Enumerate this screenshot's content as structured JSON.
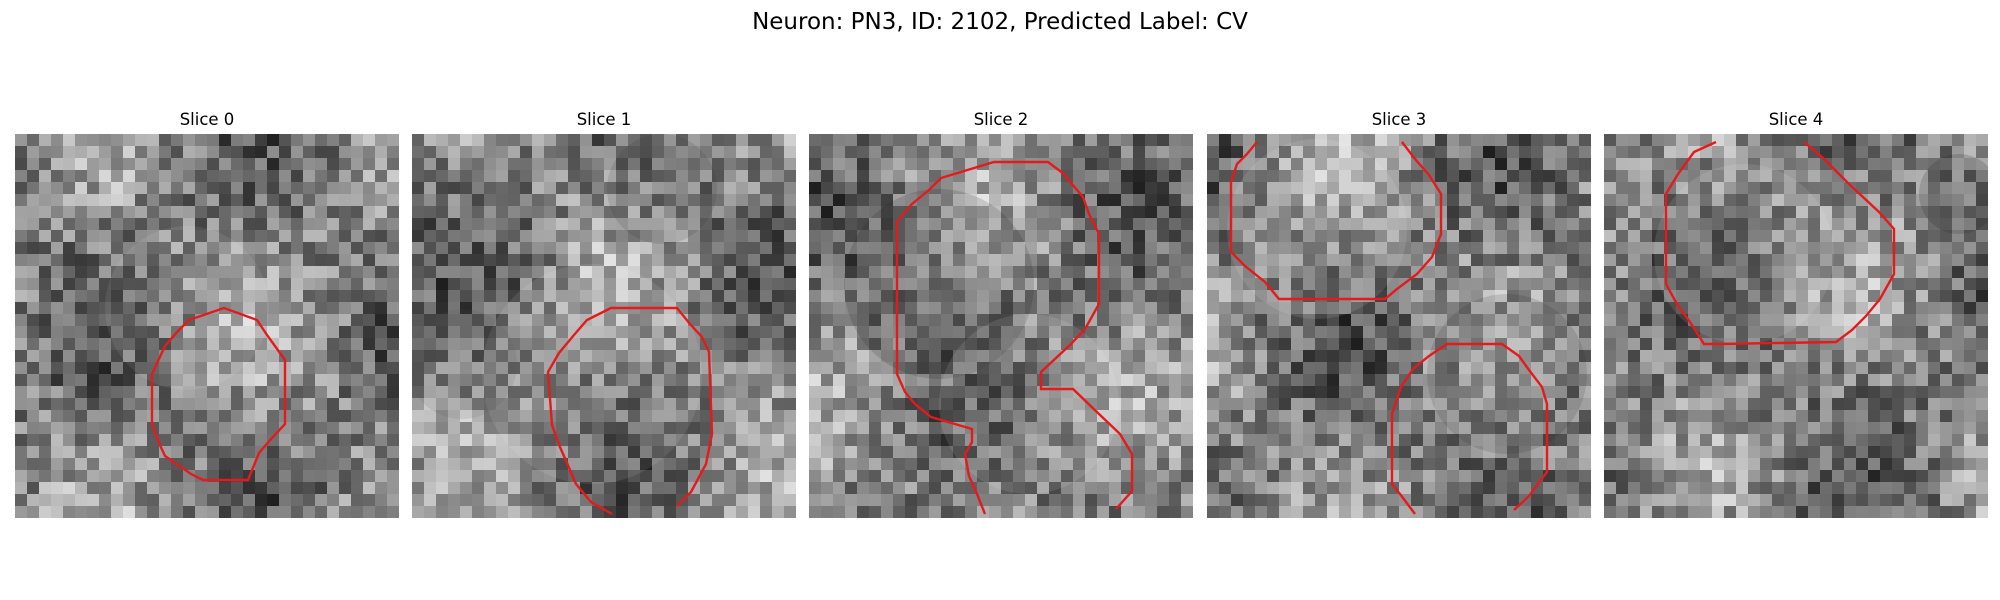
{
  "figure": {
    "title": "Neuron: PN3, ID: 2102, Predicted Label: CV"
  },
  "panels": [
    {
      "title": "Slice 0"
    },
    {
      "title": "Slice 1"
    },
    {
      "title": "Slice 2"
    },
    {
      "title": "Slice 3"
    },
    {
      "title": "Slice 4"
    }
  ],
  "style": {
    "contour_color": "#e41a1c",
    "image_colormap": "gray"
  }
}
